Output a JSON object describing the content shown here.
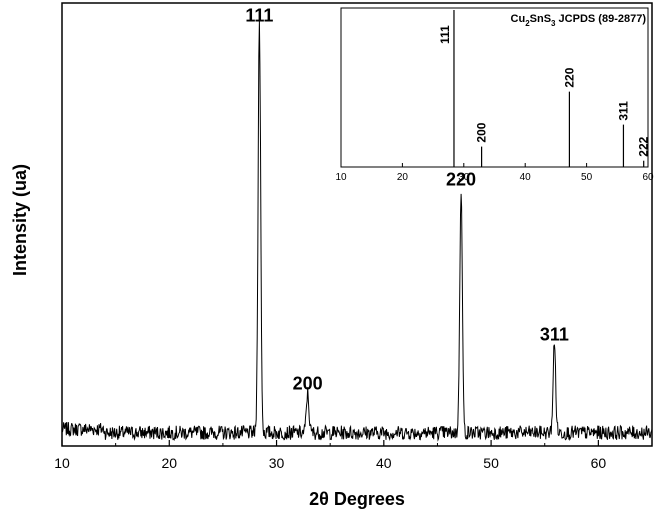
{
  "chart_data": [
    {
      "type": "line",
      "xlabel": "2θ Degrees",
      "ylabel": "Intensity (ua)",
      "xlim": [
        10,
        65
      ],
      "ylim": [
        0,
        100
      ],
      "xticks": [
        10,
        20,
        30,
        40,
        50,
        60
      ],
      "grid": false,
      "peaks": [
        {
          "label": "111",
          "x": 28.4,
          "y": 92
        },
        {
          "label": "200",
          "x": 32.9,
          "y": 9
        },
        {
          "label": "220",
          "x": 47.2,
          "y": 55
        },
        {
          "label": "311",
          "x": 55.9,
          "y": 20
        }
      ],
      "baseline_level": 2
    },
    {
      "type": "bar",
      "title_parts": {
        "a": "Cu",
        "b": "2",
        "c": "SnS",
        "d": "3",
        "e": " JCPDS (89-2877)"
      },
      "xlim": [
        10,
        60
      ],
      "ylim": [
        0,
        100
      ],
      "xticks": [
        10,
        20,
        30,
        40,
        50,
        60
      ],
      "x": [
        28.4,
        32.9,
        47.2,
        56.0,
        59.3
      ],
      "values": [
        100,
        13,
        48,
        27,
        4
      ],
      "labels": [
        "111",
        "200",
        "220",
        "311",
        "222"
      ]
    }
  ]
}
